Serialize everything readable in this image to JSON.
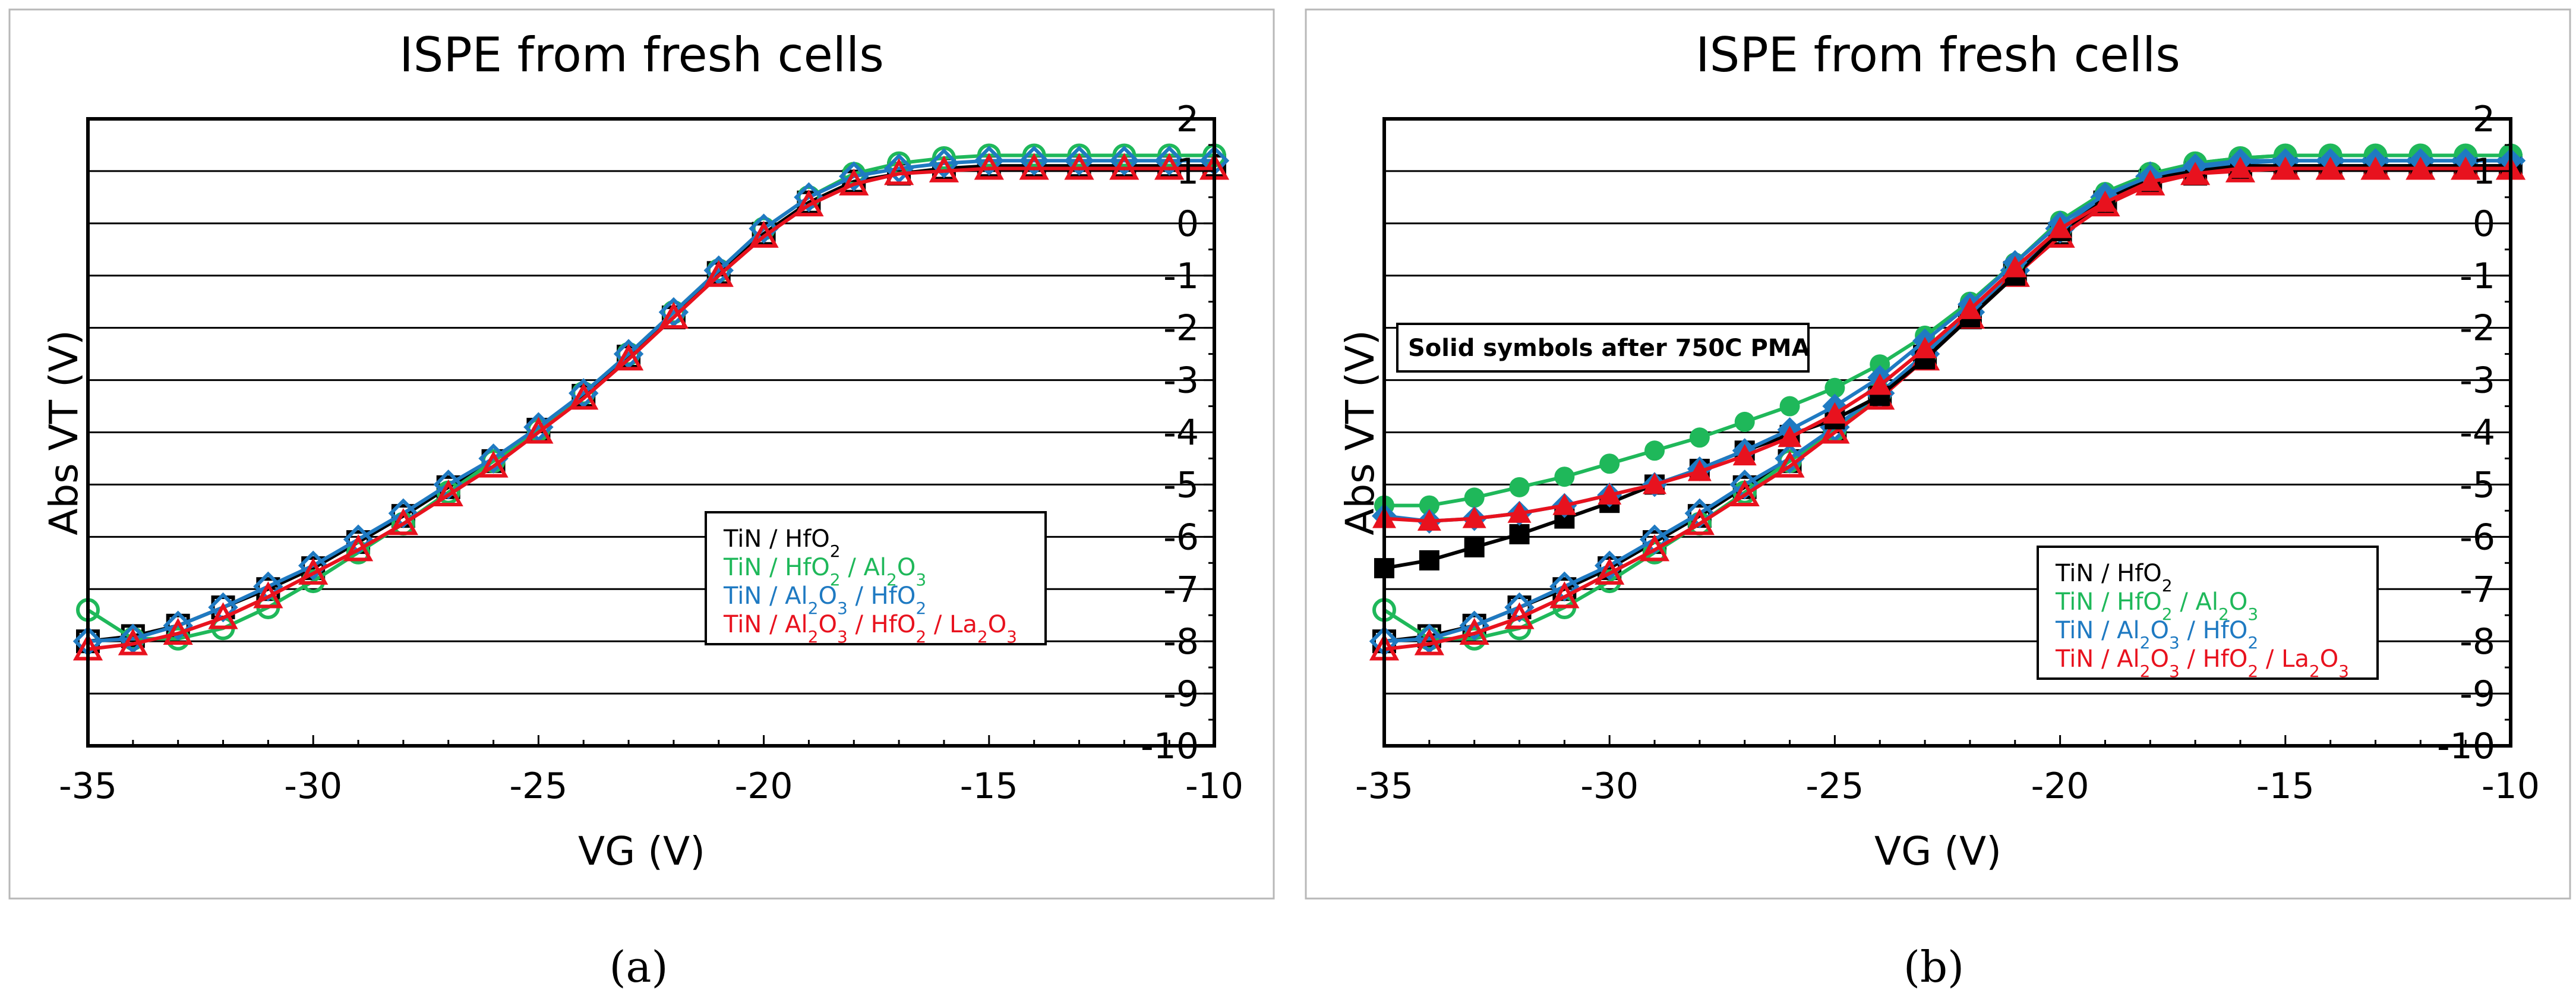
{
  "figure": {
    "captions": [
      "(a)",
      "(b)"
    ]
  },
  "colors": {
    "black": "#000000",
    "green": "#1fb85a",
    "blue": "#1f7ac2",
    "red": "#e8121e"
  },
  "chart_data": [
    {
      "type": "line",
      "panel": "a",
      "title": "ISPE from fresh cells",
      "xlabel": "VG (V)",
      "ylabel": "Abs VT (V)",
      "xlim": [
        -35,
        -10
      ],
      "ylim": [
        -10,
        2
      ],
      "xticks": [
        -35,
        -30,
        -25,
        -20,
        -15,
        -10
      ],
      "yticks": [
        2,
        1,
        0,
        -1,
        -2,
        -3,
        -4,
        -5,
        -6,
        -7,
        -8,
        -9,
        -10
      ],
      "grid": true,
      "legend_position": "lower-right",
      "x": [
        -35,
        -34,
        -33,
        -32,
        -31,
        -30,
        -29,
        -28,
        -27,
        -26,
        -25,
        -24,
        -23,
        -22,
        -21,
        -20,
        -19,
        -18,
        -17,
        -16,
        -15,
        -14,
        -13,
        -12,
        -11,
        -10
      ],
      "series": [
        {
          "name": "TiN / HfO2",
          "legend_html": "TiN / HfO<tspan baseline-shift='sub' font-size='28'>2</tspan>",
          "color": "black",
          "marker": "square",
          "filled": false,
          "values": [
            -8.0,
            -7.9,
            -7.7,
            -7.35,
            -7.0,
            -6.6,
            -6.1,
            -5.6,
            -5.05,
            -4.55,
            -3.95,
            -3.3,
            -2.55,
            -1.8,
            -0.95,
            -0.2,
            0.4,
            0.8,
            0.95,
            1.05,
            1.1,
            1.1,
            1.1,
            1.1,
            1.1,
            1.1
          ]
        },
        {
          "name": "TiN / HfO2 / Al2O3",
          "color": "green",
          "marker": "circle",
          "filled": false,
          "values": [
            -7.4,
            -7.95,
            -7.95,
            -7.75,
            -7.35,
            -6.85,
            -6.3,
            -5.75,
            -5.15,
            -4.55,
            -3.95,
            -3.25,
            -2.5,
            -1.7,
            -0.9,
            -0.1,
            0.5,
            0.95,
            1.15,
            1.25,
            1.3,
            1.3,
            1.3,
            1.3,
            1.3,
            1.3
          ]
        },
        {
          "name": "TiN / Al2O3 / HfO2",
          "color": "blue",
          "marker": "diamond",
          "filled": false,
          "values": [
            -8.0,
            -7.95,
            -7.7,
            -7.35,
            -6.95,
            -6.55,
            -6.05,
            -5.55,
            -5.0,
            -4.5,
            -3.9,
            -3.25,
            -2.5,
            -1.7,
            -0.9,
            -0.1,
            0.5,
            0.9,
            1.05,
            1.15,
            1.2,
            1.2,
            1.2,
            1.2,
            1.2,
            1.2
          ]
        },
        {
          "name": "TiN / Al2O3 / HfO2 / La2O3",
          "color": "red",
          "marker": "triangle",
          "filled": false,
          "values": [
            -8.15,
            -8.05,
            -7.85,
            -7.55,
            -7.15,
            -6.7,
            -6.25,
            -5.75,
            -5.2,
            -4.65,
            -4.0,
            -3.35,
            -2.6,
            -1.8,
            -1.0,
            -0.25,
            0.35,
            0.75,
            0.95,
            1.0,
            1.05,
            1.05,
            1.05,
            1.05,
            1.05,
            1.05
          ]
        }
      ],
      "legend": [
        "TiN / HfO2",
        "TiN / HfO2 / Al2O3",
        "TiN / Al2O3 / HfO2",
        "TiN / Al2O3 / HfO2 / La2O3"
      ]
    },
    {
      "type": "line",
      "panel": "b",
      "title": "ISPE from fresh cells",
      "xlabel": "VG (V)",
      "ylabel": "Abs VT (V)",
      "xlim": [
        -35,
        -10
      ],
      "ylim": [
        -10,
        2
      ],
      "xticks": [
        -35,
        -30,
        -25,
        -20,
        -15,
        -10
      ],
      "yticks": [
        2,
        1,
        0,
        -1,
        -2,
        -3,
        -4,
        -5,
        -6,
        -7,
        -8,
        -9,
        -10
      ],
      "grid": true,
      "annotation": "Solid symbols after 750C PMA",
      "legend_position": "lower-right",
      "x": [
        -35,
        -34,
        -33,
        -32,
        -31,
        -30,
        -29,
        -28,
        -27,
        -26,
        -25,
        -24,
        -23,
        -22,
        -21,
        -20,
        -19,
        -18,
        -17,
        -16,
        -15,
        -14,
        -13,
        -12,
        -11,
        -10
      ],
      "series": [
        {
          "name": "TiN / HfO2",
          "color": "black",
          "marker": "square",
          "filled": false,
          "values": [
            -8.0,
            -7.9,
            -7.7,
            -7.35,
            -7.0,
            -6.6,
            -6.1,
            -5.6,
            -5.05,
            -4.55,
            -3.95,
            -3.3,
            -2.55,
            -1.8,
            -0.95,
            -0.2,
            0.4,
            0.8,
            0.95,
            1.05,
            1.1,
            1.1,
            1.1,
            1.1,
            1.1,
            1.1
          ]
        },
        {
          "name": "TiN / HfO2 / Al2O3",
          "color": "green",
          "marker": "circle",
          "filled": false,
          "values": [
            -7.4,
            -7.95,
            -7.95,
            -7.75,
            -7.35,
            -6.85,
            -6.3,
            -5.75,
            -5.15,
            -4.55,
            -3.95,
            -3.25,
            -2.5,
            -1.7,
            -0.9,
            -0.1,
            0.5,
            0.95,
            1.15,
            1.25,
            1.3,
            1.3,
            1.3,
            1.3,
            1.3,
            1.3
          ]
        },
        {
          "name": "TiN / Al2O3 / HfO2",
          "color": "blue",
          "marker": "diamond",
          "filled": false,
          "values": [
            -8.0,
            -7.95,
            -7.7,
            -7.35,
            -6.95,
            -6.55,
            -6.05,
            -5.55,
            -5.0,
            -4.5,
            -3.9,
            -3.25,
            -2.5,
            -1.7,
            -0.9,
            -0.1,
            0.5,
            0.9,
            1.05,
            1.15,
            1.2,
            1.2,
            1.2,
            1.2,
            1.2,
            1.2
          ]
        },
        {
          "name": "TiN / Al2O3 / HfO2 / La2O3",
          "color": "red",
          "marker": "triangle",
          "filled": false,
          "values": [
            -8.15,
            -8.05,
            -7.85,
            -7.55,
            -7.15,
            -6.7,
            -6.25,
            -5.75,
            -5.2,
            -4.65,
            -4.0,
            -3.35,
            -2.6,
            -1.8,
            -1.0,
            -0.25,
            0.35,
            0.75,
            0.95,
            1.0,
            1.05,
            1.05,
            1.05,
            1.05,
            1.05,
            1.05
          ]
        },
        {
          "name": "TiN / HfO2 (after 750C PMA)",
          "color": "black",
          "marker": "square",
          "filled": true,
          "values": [
            -6.6,
            -6.45,
            -6.2,
            -5.95,
            -5.65,
            -5.35,
            -5.0,
            -4.7,
            -4.35,
            -4.05,
            -3.75,
            -3.3,
            -2.6,
            -1.8,
            -1.0,
            -0.15,
            0.45,
            0.85,
            1.0,
            1.1,
            1.1,
            1.1,
            1.1,
            1.1,
            1.1,
            1.1
          ]
        },
        {
          "name": "TiN / HfO2 / Al2O3 (after 750C PMA)",
          "color": "green",
          "marker": "circle",
          "filled": true,
          "values": [
            -5.4,
            -5.4,
            -5.25,
            -5.05,
            -4.85,
            -4.6,
            -4.35,
            -4.1,
            -3.8,
            -3.5,
            -3.15,
            -2.7,
            -2.15,
            -1.5,
            -0.75,
            0.05,
            0.6,
            0.95,
            1.15,
            1.25,
            1.3,
            1.3,
            1.3,
            1.3,
            1.3,
            1.3
          ]
        },
        {
          "name": "TiN / Al2O3 / HfO2 (after 750C PMA)",
          "color": "blue",
          "marker": "diamond",
          "filled": true,
          "values": [
            -5.6,
            -5.7,
            -5.65,
            -5.55,
            -5.4,
            -5.2,
            -5.0,
            -4.7,
            -4.35,
            -3.95,
            -3.5,
            -2.95,
            -2.25,
            -1.55,
            -0.75,
            0.0,
            0.55,
            0.9,
            1.1,
            1.2,
            1.2,
            1.2,
            1.2,
            1.2,
            1.2,
            1.2
          ]
        },
        {
          "name": "TiN / Al2O3 / HfO2 / La2O3 (after 750C PMA)",
          "color": "red",
          "marker": "triangle",
          "filled": true,
          "values": [
            -5.65,
            -5.7,
            -5.65,
            -5.55,
            -5.4,
            -5.2,
            -5.0,
            -4.75,
            -4.45,
            -4.1,
            -3.65,
            -3.1,
            -2.4,
            -1.65,
            -0.85,
            -0.1,
            0.4,
            0.8,
            0.95,
            1.05,
            1.05,
            1.05,
            1.05,
            1.05,
            1.05,
            1.05
          ]
        }
      ],
      "legend": [
        "TiN / HfO2",
        "TiN / HfO2 / Al2O3",
        "TiN / Al2O3 / HfO2",
        "TiN / Al2O3 / HfO2 / La2O3"
      ]
    }
  ]
}
